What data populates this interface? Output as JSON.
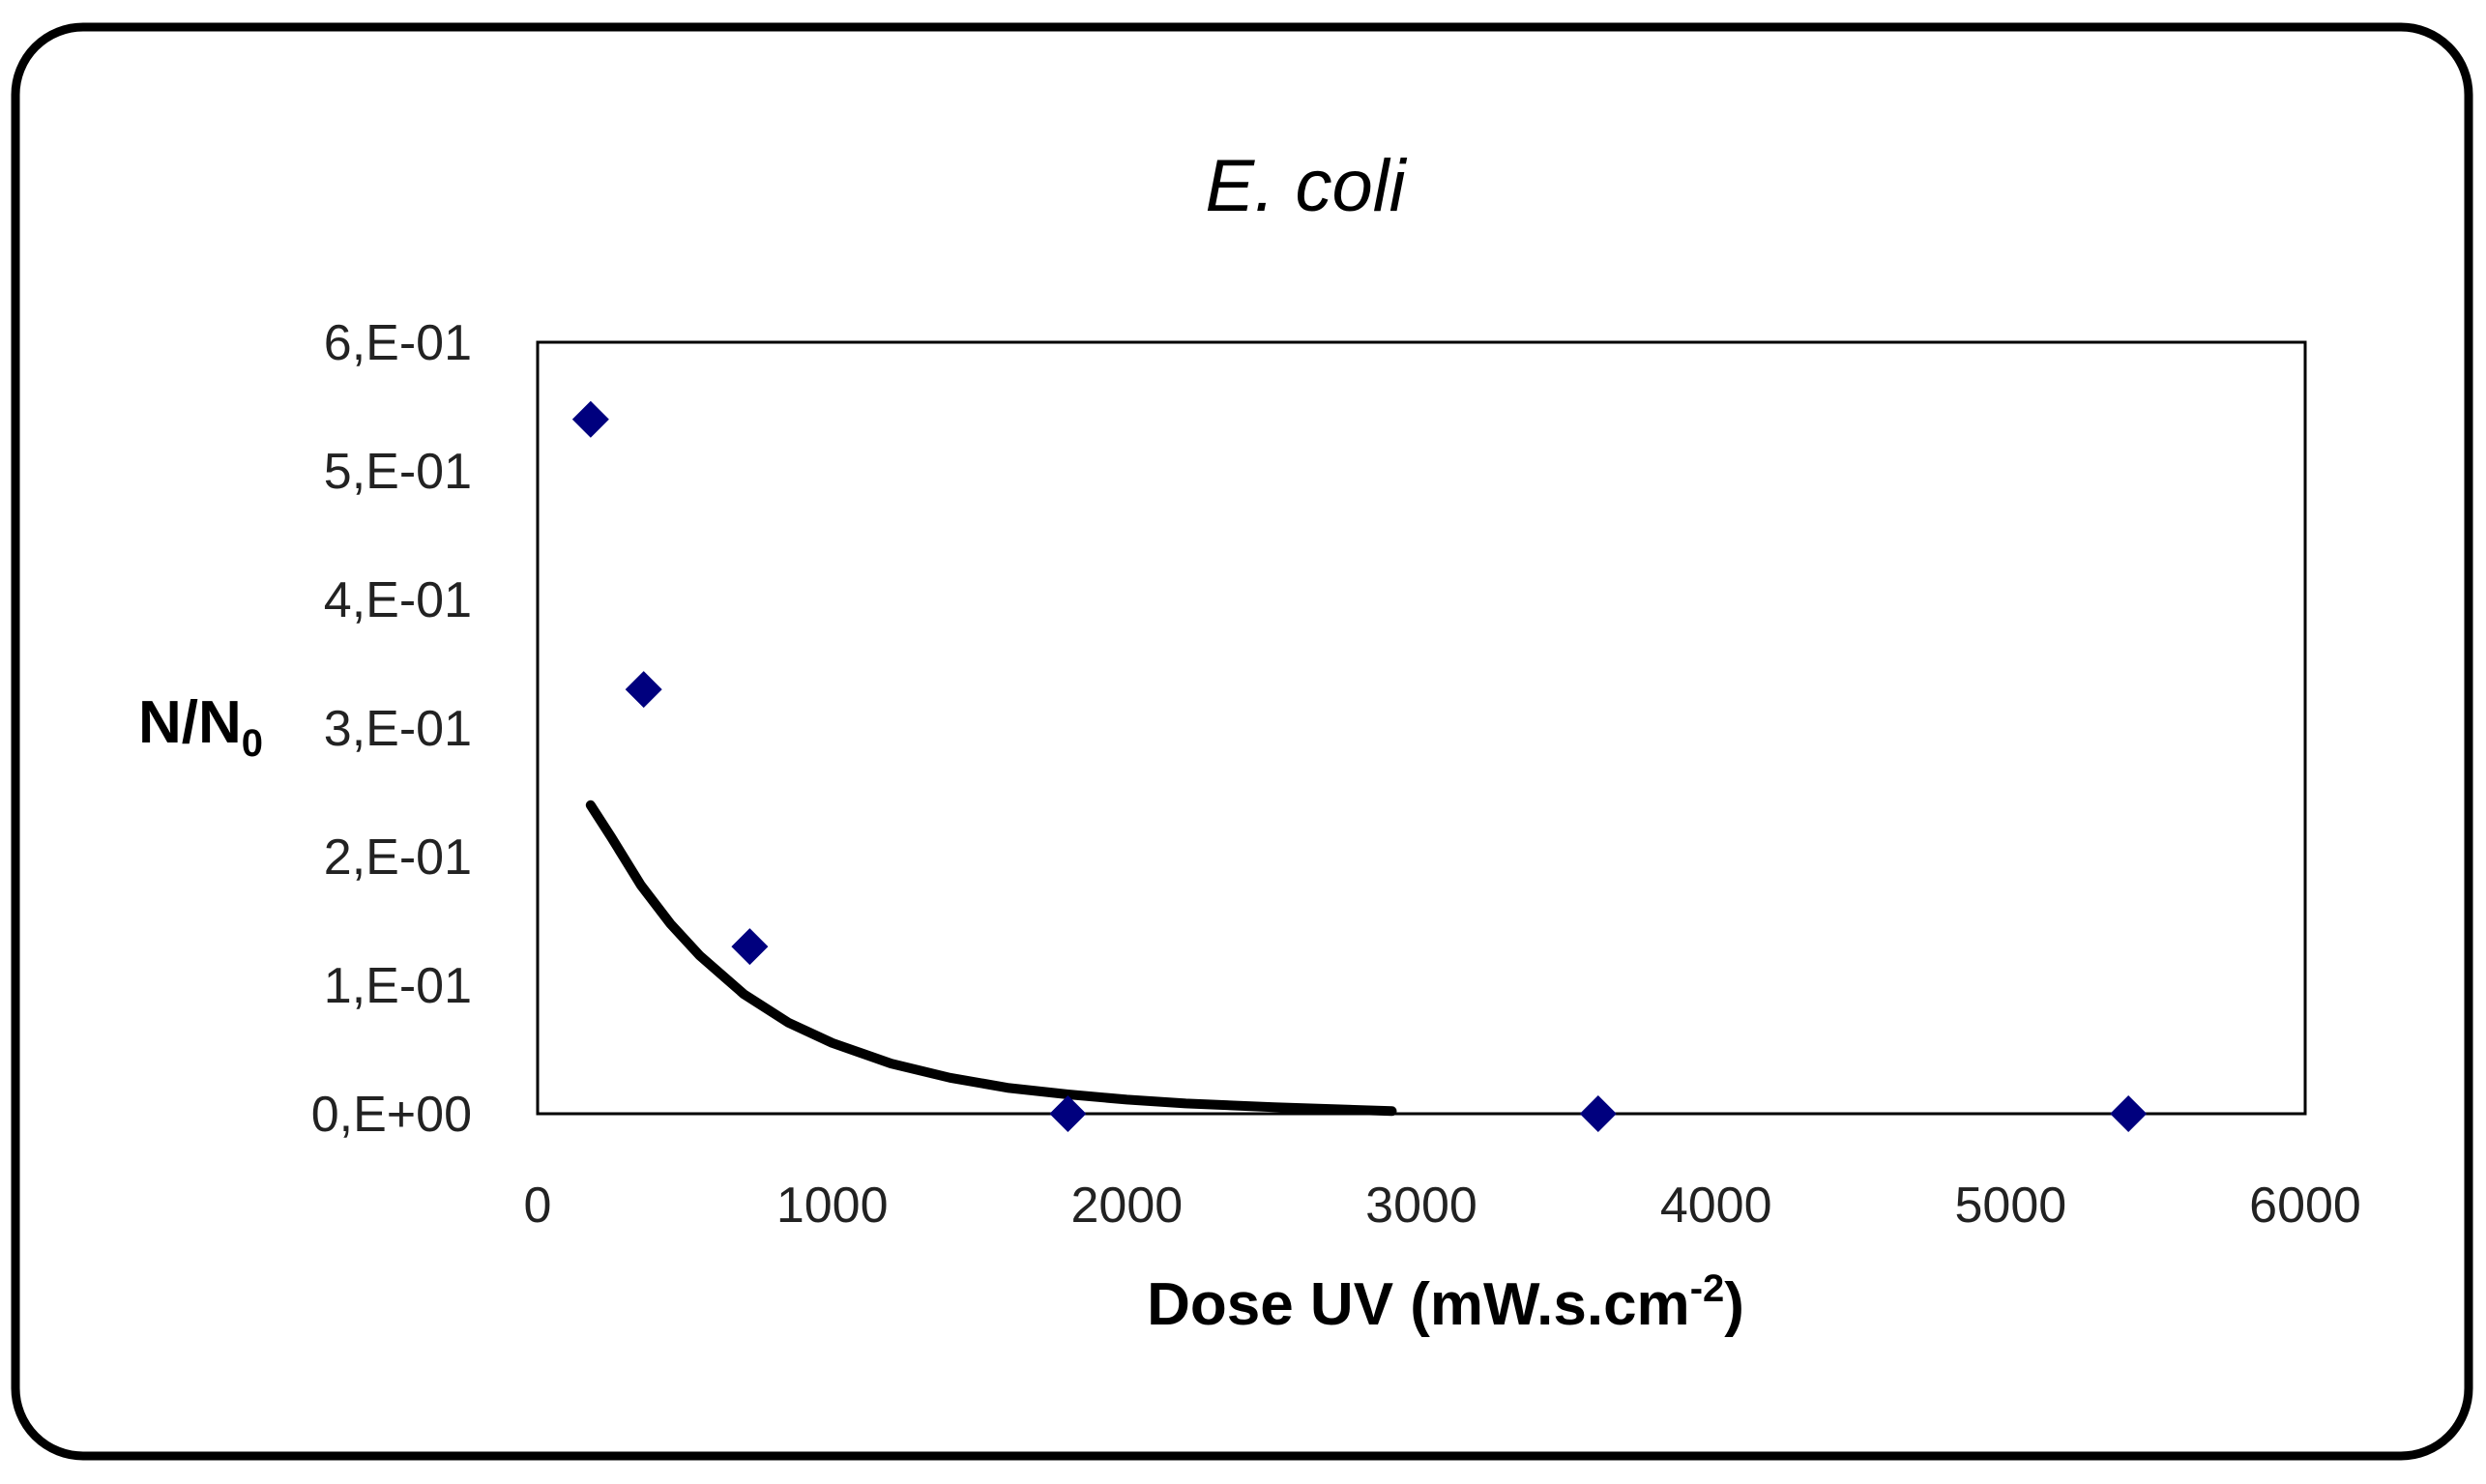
{
  "chart_data": {
    "type": "scatter",
    "title": "E. coli",
    "xlabel": {
      "main": "Dose UV (mW.s.cm",
      "sup": "-2",
      "tail": ")"
    },
    "ylabel": {
      "main": "N/N",
      "sub": "0"
    },
    "xlim": [
      0,
      6000
    ],
    "ylim": [
      0,
      0.6
    ],
    "x_ticks": [
      {
        "value": 0,
        "label": "0"
      },
      {
        "value": 1000,
        "label": "1000"
      },
      {
        "value": 2000,
        "label": "2000"
      },
      {
        "value": 3000,
        "label": "3000"
      },
      {
        "value": 4000,
        "label": "4000"
      },
      {
        "value": 5000,
        "label": "5000"
      },
      {
        "value": 6000,
        "label": "6000"
      }
    ],
    "y_ticks": [
      {
        "value": 0,
        "label": "0,E+00"
      },
      {
        "value": 0.1,
        "label": "1,E-01"
      },
      {
        "value": 0.2,
        "label": "2,E-01"
      },
      {
        "value": 0.3,
        "label": "3,E-01"
      },
      {
        "value": 0.4,
        "label": "4,E-01"
      },
      {
        "value": 0.5,
        "label": "5,E-01"
      },
      {
        "value": 0.6,
        "label": "6,E-01"
      }
    ],
    "series": [
      {
        "name": "Data",
        "type": "scatter",
        "marker": "diamond",
        "color": "#00007e",
        "points": [
          {
            "x": 180,
            "y": 0.54
          },
          {
            "x": 360,
            "y": 0.33
          },
          {
            "x": 720,
            "y": 0.13
          },
          {
            "x": 1800,
            "y": 0.0
          },
          {
            "x": 3600,
            "y": 0.0
          },
          {
            "x": 5400,
            "y": 0.0
          }
        ]
      },
      {
        "name": "Trendline",
        "type": "line",
        "color": "#000000",
        "x": [
          180,
          250,
          350,
          450,
          550,
          700,
          850,
          1000,
          1200,
          1400,
          1600,
          1800,
          2000,
          2200,
          2500,
          2900
        ],
        "y": [
          0.24,
          0.215,
          0.178,
          0.148,
          0.123,
          0.093,
          0.071,
          0.055,
          0.039,
          0.028,
          0.02,
          0.015,
          0.011,
          0.008,
          0.005,
          0.002
        ]
      }
    ],
    "grid": false,
    "legend": "none"
  },
  "colors": {
    "marker": "#00007e",
    "fit_line": "#000000",
    "frame": "#000000"
  }
}
